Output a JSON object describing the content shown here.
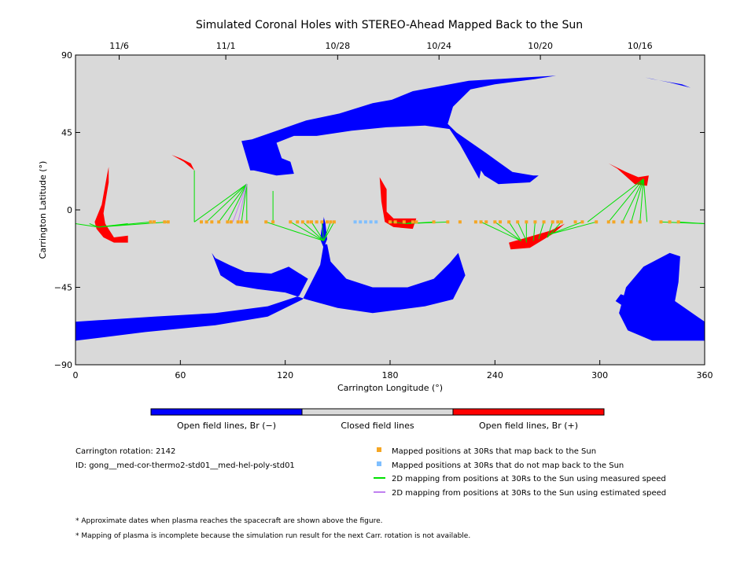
{
  "chart_data": {
    "type": "scatter",
    "title": "Simulated Coronal Holes with STEREO-Ahead Mapped Back to the Sun",
    "xlabel": "Carrington Longitude (°)",
    "ylabel": "Carrington Latitude (°)",
    "xlim": [
      0,
      360
    ],
    "ylim": [
      -90,
      90
    ],
    "x_ticks": [
      0,
      60,
      120,
      180,
      240,
      300,
      360
    ],
    "y_ticks": [
      -90,
      -45,
      0,
      45,
      90
    ],
    "top_axis": {
      "ticks": [
        {
          "lon": 25,
          "label": "11/6"
        },
        {
          "lon": 86,
          "label": "11/1"
        },
        {
          "lon": 150,
          "label": "10/28"
        },
        {
          "lon": 208,
          "label": "10/24"
        },
        {
          "lon": 266,
          "label": "10/20"
        },
        {
          "lon": 323,
          "label": "10/16"
        }
      ]
    },
    "colors": {
      "background": "#d9d9d9",
      "open_negative": "#0000ff",
      "open_positive": "#ff0000",
      "closed": "#d9d9d9",
      "mapped": "#f5a623",
      "not_mapped": "#7fbfff",
      "measured_line": "#00e000",
      "estimated_line": "#c080f0"
    },
    "colorbar": {
      "labels": [
        "Open field lines, Br (−)",
        "Closed field lines",
        "Open field lines, Br (+)"
      ]
    },
    "regions": [
      {
        "polarity": "negative",
        "points": [
          [
            0,
            -65
          ],
          [
            15,
            -64
          ],
          [
            45,
            -62
          ],
          [
            80,
            -60
          ],
          [
            110,
            -56
          ],
          [
            128,
            -50
          ],
          [
            133,
            -40
          ],
          [
            122,
            -33
          ],
          [
            112,
            -37
          ],
          [
            97,
            -36
          ],
          [
            88,
            -32
          ],
          [
            80,
            -28
          ],
          [
            78,
            -25
          ],
          [
            83,
            -38
          ],
          [
            92,
            -44
          ],
          [
            104,
            -46
          ],
          [
            120,
            -48
          ],
          [
            132,
            -52
          ],
          [
            150,
            -57
          ],
          [
            170,
            -60
          ],
          [
            200,
            -56
          ],
          [
            216,
            -52
          ],
          [
            220,
            -44
          ],
          [
            223,
            -38
          ],
          [
            219,
            -25
          ],
          [
            214,
            -31
          ],
          [
            205,
            -40
          ],
          [
            190,
            -45
          ],
          [
            170,
            -45
          ],
          [
            155,
            -40
          ],
          [
            146,
            -30
          ],
          [
            144,
            -20
          ],
          [
            142,
            -20
          ],
          [
            140,
            -32
          ],
          [
            130,
            -52
          ],
          [
            110,
            -62
          ],
          [
            80,
            -67
          ],
          [
            40,
            -71
          ],
          [
            0,
            -76
          ]
        ]
      },
      {
        "polarity": "negative",
        "points": [
          [
            100,
            23
          ],
          [
            95,
            40
          ],
          [
            101,
            41
          ],
          [
            118,
            47
          ],
          [
            132,
            52
          ],
          [
            151,
            56
          ],
          [
            170,
            62
          ],
          [
            181,
            64
          ],
          [
            193,
            69
          ],
          [
            209,
            72
          ],
          [
            225,
            75
          ],
          [
            257,
            77
          ],
          [
            275,
            78
          ],
          [
            263,
            76
          ],
          [
            240,
            73
          ],
          [
            226,
            70
          ],
          [
            216,
            60
          ],
          [
            213,
            50
          ],
          [
            218,
            45
          ],
          [
            235,
            33
          ],
          [
            250,
            22
          ],
          [
            262,
            20
          ],
          [
            265,
            20
          ],
          [
            260,
            16
          ],
          [
            242,
            15
          ],
          [
            234,
            20
          ],
          [
            232,
            23
          ],
          [
            231,
            18
          ],
          [
            220,
            38
          ],
          [
            214,
            47
          ],
          [
            200,
            49
          ],
          [
            178,
            48
          ],
          [
            158,
            46
          ],
          [
            138,
            43
          ],
          [
            125,
            43
          ],
          [
            115,
            39
          ],
          [
            118,
            30
          ],
          [
            123,
            28
          ],
          [
            125,
            21
          ],
          [
            115,
            20
          ],
          [
            102,
            23
          ]
        ]
      },
      {
        "polarity": "negative",
        "points": [
          [
            142,
            -5
          ],
          [
            141,
            -10
          ],
          [
            140,
            -17
          ],
          [
            142,
            -22
          ],
          [
            144,
            -17
          ],
          [
            143,
            -8
          ],
          [
            142,
            -4
          ]
        ]
      },
      {
        "polarity": "negative",
        "points": [
          [
            340,
            -25
          ],
          [
            325,
            -33
          ],
          [
            315,
            -45
          ],
          [
            311,
            -60
          ],
          [
            316,
            -70
          ],
          [
            330,
            -76
          ],
          [
            360,
            -76
          ],
          [
            360,
            -65
          ],
          [
            343,
            -53
          ],
          [
            345,
            -42
          ],
          [
            346,
            -27
          ]
        ]
      },
      {
        "polarity": "negative",
        "points": [
          [
            312,
            -49
          ],
          [
            320,
            -52
          ],
          [
            326,
            -59
          ],
          [
            315,
            -57
          ],
          [
            309,
            -53
          ]
        ]
      },
      {
        "polarity": "negative",
        "points": [
          [
            326,
            77
          ],
          [
            340,
            74
          ],
          [
            352,
            71
          ],
          [
            347,
            73
          ],
          [
            330,
            76
          ]
        ]
      },
      {
        "polarity": "positive",
        "points": [
          [
            16,
            -16
          ],
          [
            12,
            -11
          ],
          [
            11,
            -7
          ],
          [
            15,
            3
          ],
          [
            18,
            20
          ],
          [
            19,
            25
          ],
          [
            19,
            16
          ],
          [
            16,
            -2
          ],
          [
            17,
            -8
          ],
          [
            22,
            -16
          ],
          [
            30,
            -15
          ],
          [
            30,
            -19
          ],
          [
            22,
            -19
          ]
        ]
      },
      {
        "polarity": "positive",
        "points": [
          [
            55,
            32
          ],
          [
            62,
            28
          ],
          [
            68,
            23
          ],
          [
            66,
            27
          ],
          [
            60,
            30
          ]
        ]
      },
      {
        "polarity": "positive",
        "points": [
          [
            174,
            19
          ],
          [
            178,
            12
          ],
          [
            178,
            -1
          ],
          [
            182,
            -5
          ],
          [
            195,
            -5
          ],
          [
            193,
            -11
          ],
          [
            182,
            -10
          ],
          [
            177,
            -7
          ],
          [
            175,
            5
          ]
        ]
      },
      {
        "polarity": "positive",
        "points": [
          [
            248,
            -19
          ],
          [
            255,
            -17
          ],
          [
            272,
            -12
          ],
          [
            280,
            -8
          ],
          [
            273,
            -14
          ],
          [
            260,
            -22
          ],
          [
            249,
            -23
          ]
        ]
      },
      {
        "polarity": "positive",
        "points": [
          [
            305,
            27
          ],
          [
            315,
            22
          ],
          [
            322,
            19
          ],
          [
            328,
            20
          ],
          [
            327,
            14
          ],
          [
            320,
            15
          ],
          [
            310,
            24
          ]
        ]
      }
    ],
    "mapped_positions": [
      [
        43,
        -7
      ],
      [
        45,
        -7
      ],
      [
        51,
        -7
      ],
      [
        53,
        -7
      ],
      [
        72,
        -7
      ],
      [
        75,
        -7
      ],
      [
        78,
        -7
      ],
      [
        82,
        -7
      ],
      [
        87,
        -7
      ],
      [
        89,
        -7
      ],
      [
        93,
        -7
      ],
      [
        95,
        -7
      ],
      [
        98,
        -7
      ],
      [
        109,
        -7
      ],
      [
        113,
        -7
      ],
      [
        123,
        -7
      ],
      [
        127,
        -7
      ],
      [
        130,
        -7
      ],
      [
        133,
        -7
      ],
      [
        135,
        -7
      ],
      [
        138,
        -7
      ],
      [
        141,
        -7
      ],
      [
        144,
        -7
      ],
      [
        146,
        -7
      ],
      [
        148,
        -7
      ],
      [
        180,
        -7
      ],
      [
        183,
        -7
      ],
      [
        188,
        -7
      ],
      [
        193,
        -7
      ],
      [
        195,
        -7
      ],
      [
        205,
        -7
      ],
      [
        213,
        -7
      ],
      [
        220,
        -7
      ],
      [
        229,
        -7
      ],
      [
        232,
        -7
      ],
      [
        235,
        -7
      ],
      [
        240,
        -7
      ],
      [
        243,
        -7
      ],
      [
        248,
        -7
      ],
      [
        253,
        -7
      ],
      [
        258,
        -7
      ],
      [
        263,
        -7
      ],
      [
        268,
        -7
      ],
      [
        273,
        -7
      ],
      [
        276,
        -7
      ],
      [
        278,
        -7
      ],
      [
        286,
        -7
      ],
      [
        290,
        -7
      ],
      [
        298,
        -7
      ],
      [
        305,
        -7
      ],
      [
        308,
        -7
      ],
      [
        313,
        -7
      ],
      [
        318,
        -7
      ],
      [
        323,
        -7
      ],
      [
        335,
        -7
      ],
      [
        340,
        -7
      ],
      [
        345,
        -7
      ]
    ],
    "unmapped_positions": [
      [
        160,
        -7
      ],
      [
        163,
        -7
      ],
      [
        166,
        -7
      ],
      [
        169,
        -7
      ],
      [
        172,
        -7
      ]
    ],
    "measured_mappings": [
      [
        [
          0,
          -8
        ],
        [
          13,
          -10
        ]
      ],
      [
        [
          8,
          -8
        ],
        [
          13,
          -10
        ]
      ],
      [
        [
          30,
          -8
        ],
        [
          13,
          -10
        ]
      ],
      [
        [
          43,
          -7
        ],
        [
          13,
          -10
        ]
      ],
      [
        [
          53,
          -7
        ],
        [
          13,
          -10
        ]
      ],
      [
        [
          68,
          23
        ],
        [
          68,
          -7
        ]
      ],
      [
        [
          68,
          -7
        ],
        [
          98,
          15
        ]
      ],
      [
        [
          75,
          -7
        ],
        [
          98,
          15
        ]
      ],
      [
        [
          82,
          -7
        ],
        [
          98,
          15
        ]
      ],
      [
        [
          87,
          -7
        ],
        [
          98,
          15
        ]
      ],
      [
        [
          95,
          -7
        ],
        [
          98,
          15
        ]
      ],
      [
        [
          98,
          -7
        ],
        [
          98,
          15
        ]
      ],
      [
        [
          113,
          11
        ],
        [
          113,
          -7
        ]
      ],
      [
        [
          109,
          -7
        ],
        [
          142,
          -18
        ]
      ],
      [
        [
          123,
          -7
        ],
        [
          142,
          -18
        ]
      ],
      [
        [
          130,
          -7
        ],
        [
          142,
          -18
        ]
      ],
      [
        [
          135,
          -7
        ],
        [
          142,
          -18
        ]
      ],
      [
        [
          141,
          -7
        ],
        [
          142,
          -18
        ]
      ],
      [
        [
          146,
          -7
        ],
        [
          142,
          -18
        ]
      ],
      [
        [
          148,
          -7
        ],
        [
          142,
          -18
        ]
      ],
      [
        [
          180,
          -7
        ],
        [
          189,
          -8
        ]
      ],
      [
        [
          193,
          -7
        ],
        [
          189,
          -8
        ]
      ],
      [
        [
          205,
          -7
        ],
        [
          189,
          -8
        ]
      ],
      [
        [
          213,
          -7
        ],
        [
          189,
          -8
        ]
      ],
      [
        [
          232,
          -7
        ],
        [
          255,
          -18
        ]
      ],
      [
        [
          240,
          -7
        ],
        [
          255,
          -18
        ]
      ],
      [
        [
          248,
          -7
        ],
        [
          255,
          -18
        ]
      ],
      [
        [
          253,
          -7
        ],
        [
          258,
          -18
        ]
      ],
      [
        [
          258,
          -7
        ],
        [
          258,
          -19
        ]
      ],
      [
        [
          263,
          -7
        ],
        [
          262,
          -18
        ]
      ],
      [
        [
          268,
          -7
        ],
        [
          265,
          -17
        ]
      ],
      [
        [
          273,
          -7
        ],
        [
          270,
          -16
        ]
      ],
      [
        [
          278,
          -7
        ],
        [
          270,
          -16
        ]
      ],
      [
        [
          290,
          -7
        ],
        [
          272,
          -14
        ]
      ],
      [
        [
          298,
          -7
        ],
        [
          272,
          -14
        ]
      ],
      [
        [
          293,
          -7
        ],
        [
          325,
          18
        ]
      ],
      [
        [
          305,
          -7
        ],
        [
          325,
          18
        ]
      ],
      [
        [
          313,
          -7
        ],
        [
          325,
          18
        ]
      ],
      [
        [
          318,
          -7
        ],
        [
          325,
          18
        ]
      ],
      [
        [
          323,
          -7
        ],
        [
          325,
          18
        ]
      ],
      [
        [
          327,
          -7
        ],
        [
          325,
          18
        ]
      ],
      [
        [
          335,
          -7
        ],
        [
          360,
          -8
        ]
      ],
      [
        [
          345,
          -7
        ],
        [
          360,
          -8
        ]
      ]
    ],
    "estimated_mappings": [
      [
        [
          90,
          -7
        ],
        [
          98,
          15
        ]
      ],
      [
        [
          93,
          -7
        ],
        [
          98,
          15
        ]
      ]
    ]
  },
  "info": {
    "rotation": "Carrington rotation: 2142",
    "id": "ID: gong__med-cor-thermo2-std01__med-hel-poly-std01"
  },
  "legend": {
    "mapped": "Mapped positions at 30Rs that map back to the Sun",
    "not_mapped": "Mapped positions at 30Rs that do not map back to the Sun",
    "measured": "2D mapping from positions at 30Rs to the Sun using measured speed",
    "estimated": "2D mapping from positions at 30Rs to the Sun using estimated speed"
  },
  "notes": [
    "* Approximate dates when plasma reaches the spacecraft are shown above the figure.",
    "* Mapping of plasma is incomplete because the simulation run result for the next Carr. rotation is not available."
  ]
}
